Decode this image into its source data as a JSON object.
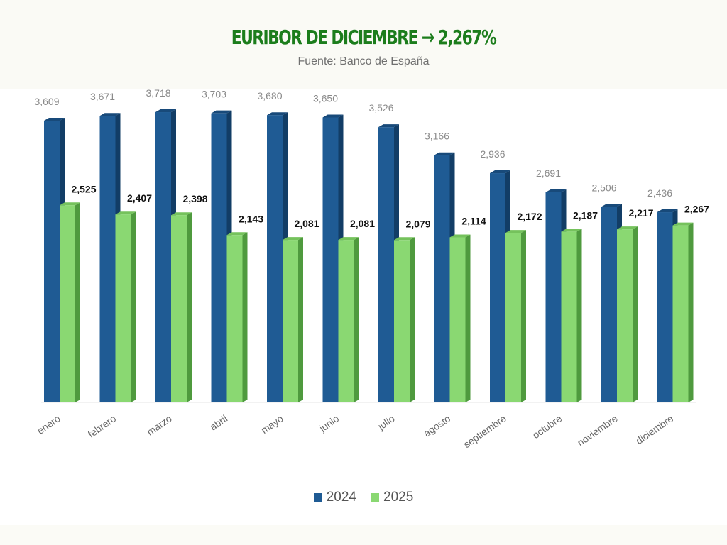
{
  "header": {
    "title": "EURIBOR DE DICIEMBRE → 2,267%",
    "subtitle": "Fuente: Banco de España"
  },
  "colors": {
    "series_2024": "#1f5b94",
    "series_2025": "#8ad872",
    "title": "#1c7d1c"
  },
  "chart_data": {
    "type": "bar",
    "style": "3d-clustered-column",
    "categories": [
      "enero",
      "febrero",
      "marzo",
      "abril",
      "mayo",
      "junio",
      "julio",
      "agosto",
      "septiembre",
      "octubre",
      "noviembre",
      "diciembre"
    ],
    "series": [
      {
        "name": "2024",
        "values": [
          3.609,
          3.671,
          3.718,
          3.703,
          3.68,
          3.65,
          3.526,
          3.166,
          2.936,
          2.691,
          2.506,
          2.436
        ],
        "labels": [
          "3,609",
          "3,671",
          "3,718",
          "3,703",
          "3,680",
          "3,650",
          "3,526",
          "3,166",
          "2,936",
          "2,691",
          "2,506",
          "2,436"
        ]
      },
      {
        "name": "2025",
        "values": [
          2.525,
          2.407,
          2.398,
          2.143,
          2.081,
          2.081,
          2.079,
          2.114,
          2.172,
          2.187,
          2.217,
          2.267
        ],
        "labels": [
          "2,525",
          "2,407",
          "2,398",
          "2,143",
          "2,081",
          "2,081",
          "2,079",
          "2,114",
          "2,172",
          "2,187",
          "2,217",
          "2,267"
        ]
      }
    ],
    "grid": false,
    "legend": "bottom-center",
    "ylim": [
      0,
      4
    ]
  }
}
